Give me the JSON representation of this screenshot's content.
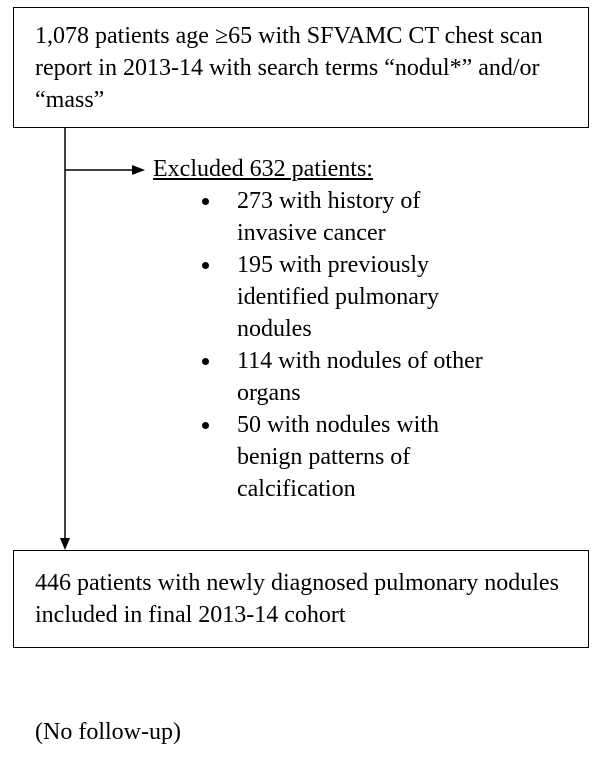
{
  "top_box": {
    "text": "1,078 patients age ≥65 with SFVAMC CT chest scan report in 2013-14 with search terms “nodul*” and/or “mass”"
  },
  "exclusion": {
    "heading": "Excluded 632 patients:",
    "items": [
      "273 with history of invasive cancer",
      "195 with previously identified pulmonary nodules",
      "114 with nodules of other organs",
      "50 with nodules with benign patterns of calcification"
    ]
  },
  "bottom_box": {
    "text": "446 patients with newly diagnosed pulmonary nodules included in final 2013-14 cohort"
  },
  "note": "(No follow-up)"
}
